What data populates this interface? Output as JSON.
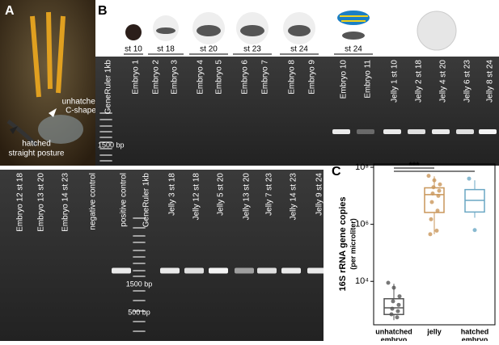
{
  "panel_a": {
    "label": "A",
    "annotations": [
      [
        "unhatched",
        "C-shape"
      ],
      [
        "hatched",
        "straight posture"
      ]
    ]
  },
  "panel_b": {
    "label": "B",
    "stages": [
      "st 10",
      "st 18",
      "st 20",
      "st 23",
      "st 24",
      "st 24"
    ],
    "top_gel": {
      "lanes": [
        "GeneRuler 1kb",
        "Embryo 1",
        "Embryo 2",
        "Embryo 3",
        "Embryo 4",
        "Embryo 5",
        "Embryo 6",
        "Embryo 7",
        "Embryo 8",
        "Embryo 9",
        "Embryo 10",
        "Embryo 11",
        "Jelly 1 st 10",
        "Jelly 2 st 18",
        "Jelly 4 st 20",
        "Jelly 6 st 23",
        "Jelly 8 st 24"
      ],
      "markers": [
        "1500 bp"
      ]
    },
    "bottom_gel": {
      "lanes": [
        "Embryo 12 st 18",
        "Embryo 13 st 20",
        "Embryo 14 st 23",
        "negative control",
        "positive control",
        "GeneRuler 1kb",
        "Jelly 3 st 18",
        "Jelly 12 st 18",
        "Jelly 5 st 20",
        "Jelly 13 st 20",
        "Jelly 7 st 23",
        "Jelly 14 st 23",
        "Jelly 9 st 24"
      ],
      "markers": [
        "1500 bp",
        "500 bp"
      ]
    }
  },
  "chart_data": {
    "type": "box",
    "label": "C",
    "ylabel": [
      "16S rRNA gene copies",
      "(per microliter)"
    ],
    "log": true,
    "ylim": [
      300,
      130000000
    ],
    "yticks": [
      {
        "value": 10000,
        "label": "10⁴"
      },
      {
        "value": 1000000,
        "label": "10⁶"
      },
      {
        "value": 100000000,
        "label": "10⁸"
      }
    ],
    "significance": "***",
    "categories": [
      [
        "unhatched",
        "embryo"
      ],
      [
        "jelly"
      ],
      [
        "hatched",
        "embryo"
      ]
    ],
    "boxes": [
      {
        "color": "#555555",
        "whislo": 435,
        "q1": 690,
        "med": 1180,
        "q3": 2460,
        "whishi": 8200,
        "points": [
          8900,
          6000,
          3000,
          2000,
          1500,
          1100,
          900,
          700,
          550
        ]
      },
      {
        "color": "#c9965a",
        "whislo": 450000,
        "q1": 2600000,
        "med": 11000000,
        "q3": 19000000,
        "whishi": 48000000,
        "points": [
          50000000,
          35000000,
          25000000,
          20000000,
          15000000,
          12000000,
          10000000,
          6000000,
          3000000,
          1500000,
          600000,
          450000
        ]
      },
      {
        "color": "#6aa7c4",
        "whislo": 1700000,
        "q1": 2700000,
        "med": 6900000,
        "q3": 16500000,
        "whishi": 35000000,
        "points": [
          40000000,
          630000
        ]
      }
    ]
  }
}
